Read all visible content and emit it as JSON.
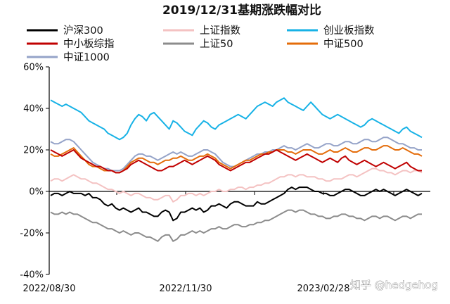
{
  "chart_data": {
    "type": "line",
    "title": "2019/12/31基期涨跌幅对比",
    "xlabel": "",
    "ylabel": "",
    "x_tick_labels": [
      "2022/08/30",
      "2022/11/30",
      "2023/02/28"
    ],
    "y_tick_labels": [
      "60%",
      "40%",
      "20%",
      "0%",
      "-20%",
      "-40%"
    ],
    "ylim": [
      -40,
      60
    ],
    "grid": false,
    "legend_position": "top",
    "watermark": "知乎 @hedgehog",
    "series": [
      {
        "name": "沪深300",
        "color": "#000000",
        "values": [
          -2,
          -1,
          -1,
          -2,
          -1,
          0,
          -1,
          -1,
          -1,
          -2,
          -1,
          -3,
          -3,
          -4,
          -6,
          -7,
          -6,
          -8,
          -9,
          -8,
          -9,
          -10,
          -9,
          -8,
          -10,
          -10,
          -11,
          -12,
          -12,
          -10,
          -9,
          -10,
          -14,
          -13,
          -10,
          -10,
          -9,
          -8,
          -9,
          -8,
          -10,
          -9,
          -7,
          -7,
          -6,
          -7,
          -8,
          -6,
          -5,
          -5,
          -6,
          -7,
          -7,
          -7,
          -5,
          -6,
          -6,
          -5,
          -4,
          -3,
          -2,
          -1,
          1,
          2,
          1,
          2,
          2,
          2,
          1,
          0,
          0,
          -1,
          -1,
          -2,
          -2,
          -1,
          0,
          1,
          1,
          0,
          -1,
          -2,
          -2,
          -1,
          0,
          1,
          0,
          1,
          0,
          -1,
          -2,
          -1,
          0,
          1,
          0,
          -1,
          -2,
          -1
        ]
      },
      {
        "name": "上证指数",
        "color": "#f4c2c2",
        "values": [
          5,
          6,
          6,
          5,
          6,
          7,
          8,
          7,
          6,
          6,
          5,
          4,
          4,
          3,
          2,
          1,
          1,
          0,
          -1,
          0,
          -1,
          -2,
          -1,
          -1,
          -2,
          -3,
          -3,
          -4,
          -4,
          -3,
          -2,
          -2,
          -5,
          -4,
          -2,
          -2,
          -1,
          -1,
          -2,
          -1,
          -2,
          -1,
          0,
          0,
          1,
          0,
          0,
          1,
          1,
          2,
          2,
          1,
          2,
          2,
          3,
          3,
          4,
          4,
          5,
          6,
          7,
          7,
          8,
          8,
          7,
          8,
          8,
          7,
          7,
          7,
          6,
          6,
          5,
          5,
          6,
          6,
          6,
          7,
          8,
          8,
          7,
          8,
          9,
          10,
          11,
          11,
          10,
          10,
          9,
          9,
          8,
          9,
          10,
          10,
          9,
          10,
          10,
          9
        ]
      },
      {
        "name": "创业板指数",
        "color": "#17b2e6",
        "values": [
          44,
          43,
          42,
          41,
          42,
          41,
          40,
          39,
          38,
          36,
          34,
          33,
          32,
          31,
          30,
          28,
          27,
          26,
          25,
          26,
          28,
          32,
          35,
          37,
          36,
          34,
          37,
          38,
          36,
          34,
          32,
          30,
          34,
          33,
          31,
          29,
          28,
          27,
          30,
          32,
          34,
          33,
          31,
          30,
          32,
          33,
          34,
          35,
          36,
          37,
          36,
          35,
          37,
          39,
          41,
          42,
          43,
          42,
          41,
          43,
          44,
          45,
          43,
          42,
          41,
          40,
          39,
          41,
          43,
          41,
          39,
          37,
          36,
          35,
          36,
          37,
          36,
          35,
          34,
          33,
          32,
          31,
          32,
          34,
          35,
          34,
          33,
          32,
          31,
          30,
          29,
          28,
          30,
          31,
          29,
          28,
          27,
          26
        ]
      },
      {
        "name": "中小板综指",
        "color": "#c00000",
        "values": [
          20,
          19,
          18,
          17,
          18,
          19,
          20,
          18,
          16,
          15,
          14,
          13,
          12,
          12,
          11,
          10,
          10,
          9,
          9,
          10,
          11,
          13,
          14,
          15,
          14,
          13,
          12,
          11,
          10,
          10,
          11,
          12,
          12,
          13,
          14,
          15,
          14,
          13,
          14,
          15,
          16,
          17,
          16,
          15,
          13,
          12,
          11,
          10,
          11,
          12,
          13,
          14,
          14,
          15,
          16,
          17,
          18,
          18,
          19,
          20,
          19,
          18,
          17,
          16,
          15,
          16,
          17,
          18,
          17,
          16,
          15,
          14,
          15,
          16,
          15,
          14,
          16,
          17,
          15,
          14,
          13,
          14,
          15,
          14,
          13,
          12,
          13,
          14,
          13,
          12,
          11,
          12,
          13,
          14,
          12,
          11,
          10,
          10
        ]
      },
      {
        "name": "上证50",
        "color": "#8c8c8c",
        "values": [
          -10,
          -11,
          -11,
          -10,
          -11,
          -10,
          -11,
          -11,
          -12,
          -13,
          -14,
          -15,
          -15,
          -16,
          -17,
          -18,
          -18,
          -19,
          -20,
          -19,
          -20,
          -21,
          -20,
          -20,
          -21,
          -22,
          -22,
          -23,
          -24,
          -22,
          -21,
          -21,
          -24,
          -23,
          -21,
          -21,
          -20,
          -19,
          -20,
          -19,
          -20,
          -19,
          -18,
          -18,
          -17,
          -18,
          -18,
          -17,
          -16,
          -16,
          -17,
          -17,
          -16,
          -16,
          -15,
          -15,
          -14,
          -14,
          -13,
          -12,
          -11,
          -10,
          -9,
          -9,
          -10,
          -9,
          -9,
          -10,
          -11,
          -11,
          -12,
          -12,
          -13,
          -13,
          -12,
          -12,
          -11,
          -11,
          -12,
          -12,
          -13,
          -13,
          -14,
          -13,
          -12,
          -12,
          -13,
          -12,
          -12,
          -13,
          -14,
          -13,
          -12,
          -12,
          -13,
          -12,
          -11,
          -11
        ]
      },
      {
        "name": "中证500",
        "color": "#e46c0a",
        "values": [
          18,
          17,
          17,
          18,
          19,
          20,
          21,
          19,
          17,
          15,
          13,
          12,
          12,
          11,
          10,
          10,
          10,
          9,
          9,
          10,
          12,
          14,
          15,
          16,
          16,
          15,
          14,
          14,
          13,
          14,
          15,
          15,
          16,
          16,
          17,
          16,
          15,
          15,
          16,
          17,
          17,
          18,
          17,
          16,
          14,
          13,
          12,
          11,
          12,
          13,
          14,
          15,
          15,
          16,
          17,
          18,
          18,
          19,
          19,
          20,
          20,
          20,
          19,
          19,
          18,
          19,
          20,
          20,
          20,
          19,
          18,
          18,
          19,
          20,
          19,
          19,
          20,
          21,
          20,
          19,
          19,
          20,
          21,
          21,
          20,
          20,
          21,
          22,
          22,
          21,
          20,
          20,
          21,
          20,
          19,
          18,
          18,
          17
        ]
      },
      {
        "name": "中证1000",
        "color": "#95a3c8",
        "values": [
          24,
          23,
          23,
          24,
          25,
          25,
          24,
          22,
          20,
          18,
          16,
          14,
          13,
          12,
          11,
          11,
          10,
          10,
          10,
          11,
          13,
          15,
          17,
          18,
          18,
          17,
          17,
          16,
          15,
          16,
          17,
          18,
          19,
          18,
          19,
          18,
          17,
          17,
          18,
          19,
          20,
          20,
          19,
          18,
          16,
          14,
          13,
          12,
          12,
          13,
          14,
          15,
          16,
          17,
          18,
          18,
          19,
          19,
          20,
          20,
          21,
          22,
          21,
          21,
          20,
          21,
          22,
          23,
          22,
          21,
          21,
          22,
          23,
          23,
          22,
          22,
          23,
          24,
          24,
          23,
          23,
          24,
          25,
          25,
          24,
          24,
          25,
          26,
          26,
          25,
          24,
          23,
          23,
          22,
          21,
          21,
          20,
          20
        ]
      }
    ]
  }
}
